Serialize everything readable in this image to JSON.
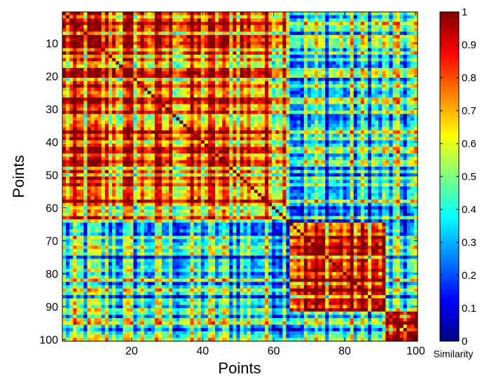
{
  "chart_data": {
    "type": "heatmap",
    "title": "",
    "xlabel": "Points",
    "ylabel": "Points",
    "n": 100,
    "xlim": [
      1,
      100
    ],
    "ylim": [
      1,
      100
    ],
    "x_ticks": [
      20,
      40,
      60,
      80,
      100
    ],
    "y_ticks": [
      10,
      20,
      30,
      40,
      50,
      60,
      70,
      80,
      90,
      100
    ],
    "colorbar": {
      "label": "Similarity",
      "range": [
        0,
        1
      ],
      "ticks": [
        0,
        0.1,
        0.2,
        0.3,
        0.4,
        0.5,
        0.6,
        0.7,
        0.8,
        0.9,
        1
      ],
      "colormap": "jet"
    },
    "diagonal_value": 1,
    "clusters": [
      {
        "start": 1,
        "end": 64,
        "mean_similarity": 0.75
      },
      {
        "start": 65,
        "end": 91,
        "mean_similarity": 0.85
      },
      {
        "start": 92,
        "end": 100,
        "mean_similarity": 0.82
      }
    ],
    "between_cluster_similarity": [
      {
        "clusters": [
          1,
          2
        ],
        "mean_similarity": 0.38
      },
      {
        "clusters": [
          1,
          3
        ],
        "mean_similarity": 0.4
      },
      {
        "clusters": [
          2,
          3
        ],
        "mean_similarity": 0.35
      }
    ],
    "grid": false
  }
}
